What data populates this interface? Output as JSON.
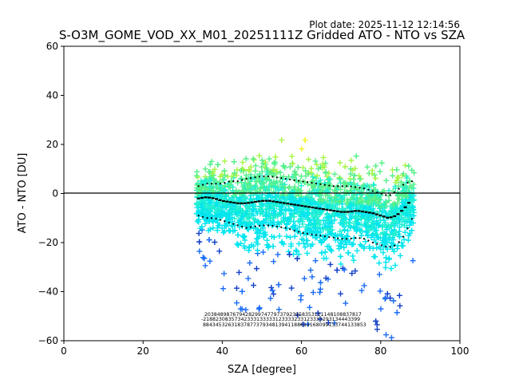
{
  "chart_data": {
    "type": "scatter",
    "plot_date": "Plot date: 2025-11-12 12:14:56",
    "title": "S-O3M_GOME_VOD_XX_M01_20251111Z Gridded ATO - NTO vs SZA",
    "xlabel": "SZA [degree]",
    "ylabel": "ATO - NTO [DU]",
    "xlim": [
      0,
      100
    ],
    "ylim": [
      -60,
      60
    ],
    "xticks": [
      0,
      20,
      40,
      60,
      80,
      100
    ],
    "yticks": [
      -60,
      -40,
      -20,
      0,
      20,
      40,
      60
    ],
    "xtick_labels": [
      "0",
      "20",
      "40",
      "60",
      "80",
      "100"
    ],
    "ytick_labels": [
      "−60",
      "−40",
      "−20",
      "0",
      "20",
      "40",
      "60"
    ],
    "reference_line_y": 0,
    "sza_range": [
      33.5,
      88.5
    ],
    "colors": {
      "cyan": "#00e5ee",
      "aqua": "#22f0d0",
      "green": "#55f08a",
      "lime": "#a8f545",
      "yellow": "#f2f52a",
      "blue": "#1a6cf5",
      "deepblue": "#1440c8",
      "orange": "#f5a020",
      "line": "#000000"
    },
    "series": [
      {
        "name": "mean",
        "x": [
          34,
          36,
          38,
          40,
          42,
          44,
          46,
          48,
          50,
          52,
          54,
          56,
          58,
          60,
          62,
          64,
          66,
          68,
          70,
          72,
          74,
          76,
          78,
          80,
          82,
          84,
          86,
          88
        ],
        "y": [
          -2,
          -1.5,
          -2,
          -3,
          -3.5,
          -4,
          -4,
          -3.5,
          -3,
          -3,
          -3.5,
          -4,
          -4.5,
          -5,
          -5.5,
          -6,
          -6.5,
          -7,
          -7.5,
          -7.5,
          -7,
          -7.5,
          -8,
          -9,
          -10,
          -9,
          -6,
          -2
        ]
      },
      {
        "name": "mean_plus_std",
        "x": [
          34,
          36,
          38,
          40,
          42,
          44,
          46,
          48,
          50,
          52,
          54,
          56,
          58,
          60,
          62,
          64,
          66,
          68,
          70,
          72,
          74,
          76,
          78,
          80,
          82,
          84,
          86,
          88
        ],
        "y": [
          3,
          4,
          4,
          4,
          5,
          5,
          6,
          6.5,
          7,
          7,
          6.5,
          6,
          5.5,
          5,
          4.5,
          4,
          3.5,
          3,
          3,
          3,
          2.5,
          2,
          1,
          0,
          -1,
          1,
          4,
          5
        ]
      },
      {
        "name": "mean_minus_std",
        "x": [
          34,
          36,
          38,
          40,
          42,
          44,
          46,
          48,
          50,
          52,
          54,
          56,
          58,
          60,
          62,
          64,
          66,
          68,
          70,
          72,
          74,
          76,
          78,
          80,
          82,
          84,
          86,
          88
        ],
        "y": [
          -9,
          -10,
          -10,
          -11,
          -12,
          -13,
          -14,
          -13.5,
          -13,
          -13,
          -13.5,
          -14,
          -15,
          -16,
          -16.5,
          -17,
          -17.5,
          -18,
          -18.5,
          -18.5,
          -18,
          -18.5,
          -20,
          -21,
          -22,
          -21,
          -17,
          -10
        ]
      }
    ],
    "count_labels": {
      "row1": "20384898767942829974779737923958353111148108837817",
      "row2": "-21882308357342333133333123333233123333293134443399",
      "row3": "8843453263183787737934813941188614168099133744133853"
    }
  }
}
